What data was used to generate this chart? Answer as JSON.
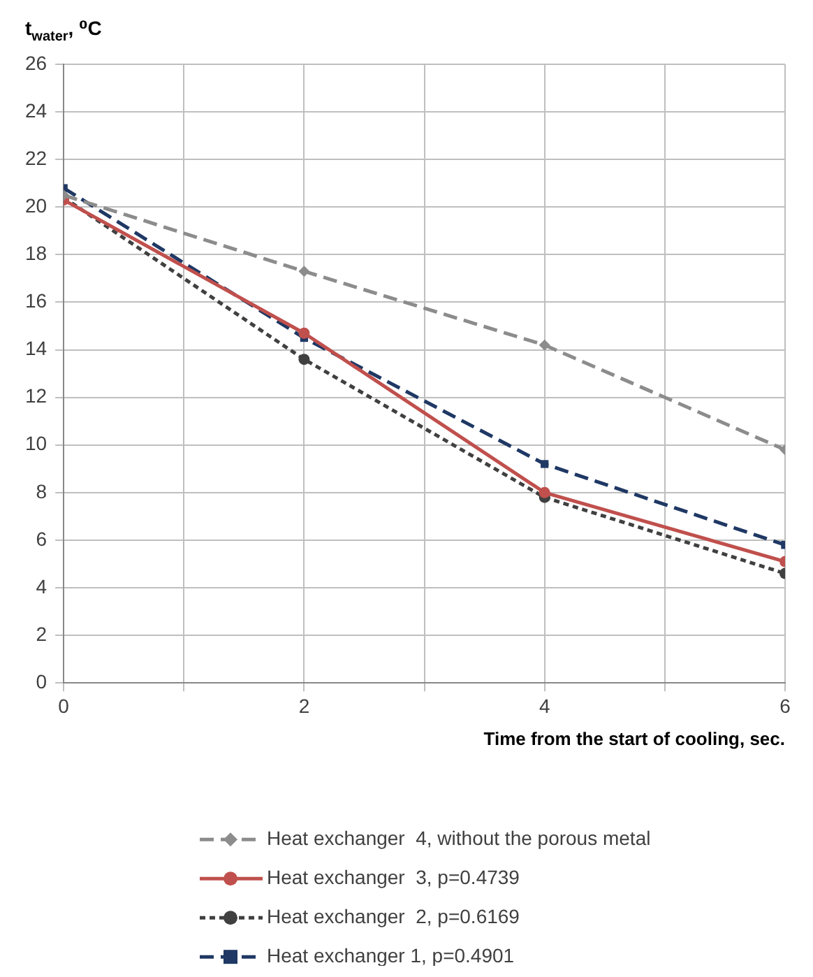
{
  "chart_data": {
    "type": "line",
    "xlabel": "Time from the start of cooling, sec.",
    "ylabel": "t$_{water}$, ⁰C",
    "x": [
      0,
      2,
      4,
      6
    ],
    "series": [
      {
        "name": "Heat exchanger  4, without the porous metal",
        "color": "#8c8c8c",
        "values": [
          20.5,
          17.3,
          14.2,
          9.8
        ],
        "marker": "diamond",
        "line_style": "dashed"
      },
      {
        "name": "Heat exchanger  3, p=0.4739",
        "color": "#c0504d",
        "values": [
          20.3,
          14.7,
          8.0,
          5.1
        ],
        "marker": "circle",
        "line_style": "solid"
      },
      {
        "name": "Heat exchanger  2, p=0.6169",
        "color": "#404040",
        "values": [
          20.4,
          13.6,
          7.8,
          4.6
        ],
        "marker": "circle",
        "line_style": "dotted"
      },
      {
        "name": "Heat exchanger 1, p=0.4901",
        "color": "#1f3864",
        "values": [
          20.8,
          14.5,
          9.2,
          5.8
        ],
        "marker": "square",
        "line_style": "dashed"
      }
    ],
    "xlim": [
      0,
      6
    ],
    "xticks": [
      0,
      {
        "value": 1,
        "label": null
      },
      2,
      {
        "value": 3,
        "label": null
      },
      4,
      {
        "value": 5,
        "label": null
      },
      6
    ],
    "ylim": [
      0,
      26
    ],
    "yticks": [
      0,
      2,
      4,
      6,
      8,
      10,
      12,
      14,
      16,
      18,
      20,
      22,
      24,
      26
    ],
    "grid": true,
    "legend": "bottom"
  }
}
